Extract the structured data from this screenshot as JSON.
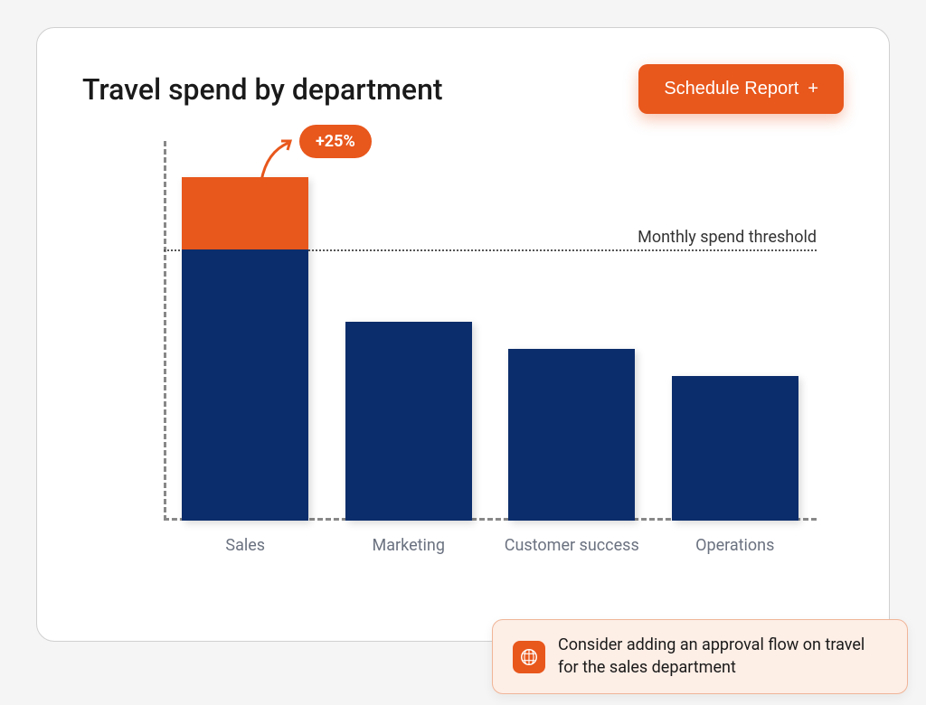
{
  "card": {
    "title": "Travel spend by department",
    "button_label": "Schedule Report",
    "button_icon": "+",
    "button_bg": "#e8571c",
    "button_text_color": "#ffffff"
  },
  "chart": {
    "type": "bar",
    "categories": [
      "Sales",
      "Marketing",
      "Customer success",
      "Operations"
    ],
    "values": [
      380,
      220,
      190,
      160
    ],
    "overage_values": [
      80,
      0,
      0,
      0
    ],
    "ylim": [
      0,
      420
    ],
    "threshold_value": 300,
    "threshold_label": "Monthly spend threshold",
    "bar_color": "#0c2d6b",
    "overage_color": "#e8571c",
    "axis_color": "#888888",
    "threshold_line_color": "#555555",
    "label_color": "#6b7280",
    "label_fontsize": 18,
    "background_color": "#ffffff",
    "badge": {
      "text": "+25%",
      "bg": "#e8571c",
      "text_color": "#ffffff",
      "fontsize": 18
    }
  },
  "suggestion": {
    "text": "Consider adding an approval flow on travel for the sales department",
    "bg": "#fdeee6",
    "border": "#f0b598",
    "icon_bg": "#e8571c"
  }
}
